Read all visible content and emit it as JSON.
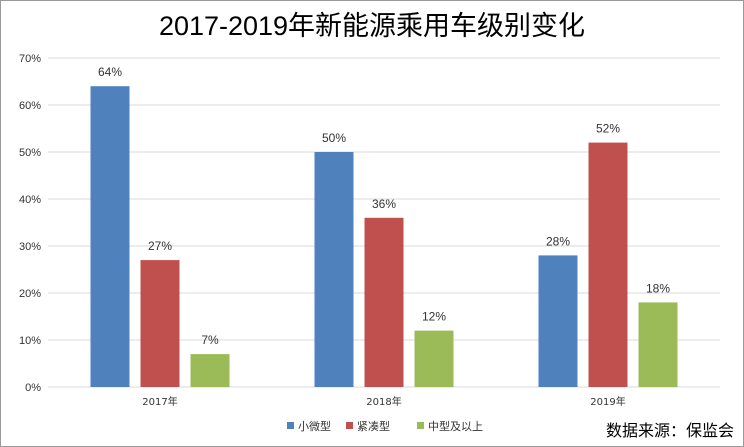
{
  "chart_data": {
    "type": "bar",
    "title": "2017-2019年新能源乘用车级别变化",
    "categories": [
      "2017年",
      "2018年",
      "2019年"
    ],
    "series": [
      {
        "name": "小微型",
        "values": [
          64,
          50,
          28
        ],
        "labels": [
          "64%",
          "50%",
          "28%"
        ],
        "color": "#4f81bd"
      },
      {
        "name": "紧凑型",
        "values": [
          27,
          36,
          52
        ],
        "labels": [
          "27%",
          "36%",
          "52%"
        ],
        "color": "#c0504d"
      },
      {
        "name": "中型及以上",
        "values": [
          7,
          12,
          18
        ],
        "labels": [
          "7%",
          "12%",
          "18%"
        ],
        "color": "#9bbb59"
      }
    ],
    "yticks": [
      "0%",
      "10%",
      "20%",
      "30%",
      "40%",
      "50%",
      "60%",
      "70%"
    ],
    "ylim": [
      0,
      70
    ],
    "grid": true,
    "legend": "bottom"
  },
  "source_text": "数据来源：保监会"
}
